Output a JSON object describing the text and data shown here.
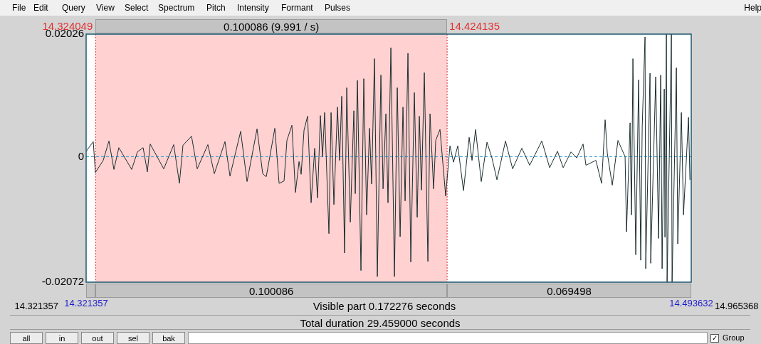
{
  "chart_data": {
    "type": "line",
    "x": [
      14.32136,
      14.32339,
      14.32399,
      14.32622,
      14.32785,
      14.32927,
      14.33068,
      14.33433,
      14.33595,
      14.33758,
      14.33879,
      14.3396,
      14.34345,
      14.34629,
      14.34791,
      14.34893,
      14.35136,
      14.35298,
      14.35602,
      14.35785,
      14.36089,
      14.36231,
      14.36535,
      14.36717,
      14.37001,
      14.37163,
      14.37264,
      14.37508,
      14.37629,
      14.37771,
      14.37852,
      14.37994,
      14.38095,
      14.38197,
      14.38258,
      14.38339,
      14.3844,
      14.38541,
      14.38643,
      14.38724,
      14.38805,
      14.38866,
      14.38926,
      14.39048,
      14.39109,
      14.3919,
      14.39291,
      14.39352,
      14.39413,
      14.39494,
      14.39555,
      14.39656,
      14.39758,
      14.39798,
      14.39859,
      14.3996,
      14.40041,
      14.40122,
      14.40203,
      14.40264,
      14.40345,
      14.40426,
      14.40528,
      14.40589,
      14.4067,
      14.4073,
      14.40812,
      14.40913,
      14.40994,
      14.41075,
      14.41156,
      14.41217,
      14.41298,
      14.41379,
      14.4148,
      14.41561,
      14.41622,
      14.41683,
      14.41764,
      14.41866,
      14.41926,
      14.42028,
      14.42089,
      14.4221,
      14.42372,
      14.42494,
      14.42595,
      14.42717,
      14.42879,
      14.43041,
      14.43122,
      14.43223,
      14.43385,
      14.43548,
      14.4369,
      14.43832,
      14.44075,
      14.44278,
      14.44541,
      14.44764,
      14.45109,
      14.45332,
      14.45555,
      14.45717,
      14.4594,
      14.46102,
      14.46284,
      14.46365,
      14.46649,
      14.46811,
      14.46912,
      14.46973,
      14.47115,
      14.47277,
      14.4748,
      14.47521,
      14.47622,
      14.47662,
      14.47703,
      14.47784,
      14.47865,
      14.47926,
      14.47967,
      14.48048,
      14.48068,
      14.4819,
      14.4821,
      14.48352,
      14.48433,
      14.48494,
      14.48534,
      14.48595,
      14.48616,
      14.48656,
      14.48676,
      14.48798,
      14.48818,
      14.4894,
      14.4898,
      14.49082,
      14.49143,
      14.49285,
      14.49326
    ],
    "series": [
      {
        "color": "#1c2f30",
        "values": [
          0.0009,
          0.0025,
          -0.0026,
          -0.0006,
          0.0026,
          -0.0021,
          0.0015,
          -0.0021,
          0.0008,
          0.0015,
          -0.0025,
          0.0021,
          -0.002,
          0.002,
          -0.0044,
          0.0019,
          0.0034,
          -0.002,
          0.002,
          -0.0028,
          0.0025,
          -0.0032,
          0.0042,
          -0.0041,
          0.0046,
          -0.0028,
          -0.0033,
          0.0047,
          -0.0044,
          -0.004,
          0.0027,
          0.0052,
          -0.0059,
          -0.0008,
          -0.0029,
          0.0044,
          0.0067,
          -0.0076,
          0.0014,
          -0.0068,
          0.0068,
          0,
          0.0073,
          -0.0127,
          0.0073,
          -0.0079,
          0.0082,
          -0.0006,
          0.01,
          -0.0159,
          0.0114,
          -0.0108,
          0.0076,
          -0.0061,
          0.0126,
          -0.0188,
          0.0129,
          -0.0096,
          0.0047,
          -0.0045,
          0.0162,
          -0.0198,
          0.0135,
          -0.0053,
          0.0071,
          -0.0076,
          0.018,
          -0.0198,
          0.0114,
          -0.0132,
          0.0082,
          -0.0073,
          0.0171,
          -0.0174,
          0.0106,
          -0.01,
          0.0067,
          -0.0055,
          0.0139,
          -0.0173,
          0.0071,
          -0.0053,
          0.0027,
          0.0045,
          -0.0065,
          0.0018,
          -0.0009,
          0.0018,
          -0.0056,
          0.0032,
          -0.0006,
          0.0045,
          -0.0041,
          0.0024,
          -0.0002,
          -0.0038,
          0.0026,
          -0.002,
          0.0014,
          -0.0014,
          0.0026,
          -0.0018,
          0.0009,
          -0.0018,
          0.0008,
          -0.0002,
          0.0021,
          -0.0014,
          -0.0006,
          -0.0044,
          0.0061,
          0.0006,
          -0.0047,
          0.0027,
          0,
          -0.0124,
          0.0056,
          -0.0096,
          0.0162,
          -0.0162,
          0.0127,
          -0.0171,
          0.0049,
          0.0198,
          -0.0185,
          0.0138,
          -0.0176,
          0.0132,
          -0.0135,
          0.0135,
          -0.0185,
          0.0112,
          -0.0133,
          0.02026,
          -0.02072,
          0.02026,
          -0.02072,
          0.0147,
          -0.0144,
          0.0073,
          -0.0096,
          0.0065,
          -0.0038
        ]
      }
    ],
    "xlim": [
      14.321357,
      14.493632
    ],
    "xticks": [
      14.321357,
      14.493632
    ],
    "ylim": [
      -0.02072,
      0.02026
    ],
    "yticks": [
      -0.02072,
      0,
      0.02026
    ],
    "grid": false,
    "legend": false,
    "marker": "none",
    "line_style": "solid",
    "bands": [
      {
        "axis": "x",
        "from": 14.324049,
        "to": 14.424135,
        "color": "#ffd1d1",
        "label": "0.100086 (9.991 / s)"
      }
    ],
    "ref_lines": [
      {
        "axis": "y",
        "value": 0,
        "color": "#2a9fd6",
        "line_style": "dashed"
      },
      {
        "axis": "x",
        "value": 14.324049,
        "label": "14.324049",
        "color": "#e03030",
        "line_style": "dotted"
      },
      {
        "axis": "x",
        "value": 14.424135,
        "label": "14.424135",
        "color": "#e03030",
        "line_style": "dotted"
      }
    ],
    "annotations": [
      "File",
      "Edit",
      "Query",
      "View",
      "Select",
      "Spectrum",
      "Pitch",
      "Intensity",
      "Formant",
      "Pulses",
      "Help",
      "0.100086",
      "0.069498",
      "14.321357",
      "Visible part 0.172276 seconds",
      "14.965368",
      "Total duration 29.459000 seconds",
      "all",
      "in",
      "out",
      "sel",
      "bak",
      "Group",
      "✓"
    ]
  }
}
